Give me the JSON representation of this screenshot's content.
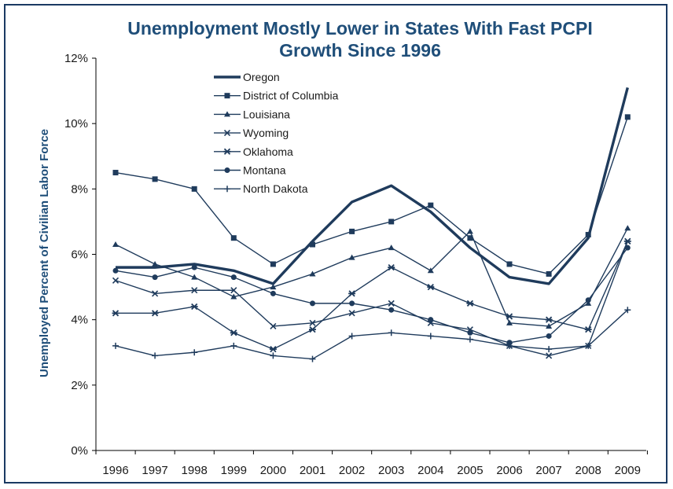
{
  "chart_data": {
    "type": "line",
    "title_lines": [
      "Unemployment Mostly Lower in States With Fast PCPI",
      "Growth Since 1996"
    ],
    "xlabel": "",
    "ylabel": "Unemployed Percent of Civilian Labor Force",
    "x": [
      "1996",
      "1997",
      "1998",
      "1999",
      "2000",
      "2001",
      "2002",
      "2003",
      "2004",
      "2005",
      "2006",
      "2007",
      "2008",
      "2009"
    ],
    "ylim": [
      0,
      12
    ],
    "yticks": [
      0,
      2,
      4,
      6,
      8,
      10,
      12
    ],
    "ytick_labels": [
      "0%",
      "2%",
      "4%",
      "6%",
      "8%",
      "10%",
      "12%"
    ],
    "grid": false,
    "legend_position": "top-center",
    "line_color": "#1f3b5c",
    "series": [
      {
        "name": "Oregon",
        "marker": "none",
        "bold": true,
        "values": [
          5.6,
          5.6,
          5.7,
          5.5,
          5.1,
          6.4,
          7.6,
          8.1,
          7.3,
          6.2,
          5.3,
          5.1,
          6.5,
          11.1
        ]
      },
      {
        "name": "District of Columbia",
        "marker": "square",
        "bold": false,
        "values": [
          8.5,
          8.3,
          8.0,
          6.5,
          5.7,
          6.3,
          6.7,
          7.0,
          7.5,
          6.5,
          5.7,
          5.4,
          6.6,
          10.2
        ]
      },
      {
        "name": "Louisiana",
        "marker": "triangle",
        "bold": false,
        "values": [
          6.3,
          5.7,
          5.3,
          4.7,
          5.0,
          5.4,
          5.9,
          6.2,
          5.5,
          6.7,
          3.9,
          3.8,
          4.5,
          6.8
        ]
      },
      {
        "name": "Wyoming",
        "marker": "x",
        "bold": false,
        "values": [
          5.2,
          4.8,
          4.9,
          4.9,
          3.8,
          3.9,
          4.2,
          4.5,
          3.9,
          3.7,
          3.2,
          2.9,
          3.2,
          6.4
        ]
      },
      {
        "name": "Oklahoma",
        "marker": "xbar",
        "bold": false,
        "values": [
          4.2,
          4.2,
          4.4,
          3.6,
          3.1,
          3.7,
          4.8,
          5.6,
          5.0,
          4.5,
          4.1,
          4.0,
          3.7,
          6.4
        ]
      },
      {
        "name": "Montana",
        "marker": "circle",
        "bold": false,
        "values": [
          5.5,
          5.3,
          5.6,
          5.3,
          4.8,
          4.5,
          4.5,
          4.3,
          4.0,
          3.6,
          3.3,
          3.5,
          4.6,
          6.2
        ]
      },
      {
        "name": "North Dakota",
        "marker": "plus",
        "bold": false,
        "values": [
          3.2,
          2.9,
          3.0,
          3.2,
          2.9,
          2.8,
          3.5,
          3.6,
          3.5,
          3.4,
          3.2,
          3.1,
          3.2,
          4.3
        ]
      }
    ]
  }
}
